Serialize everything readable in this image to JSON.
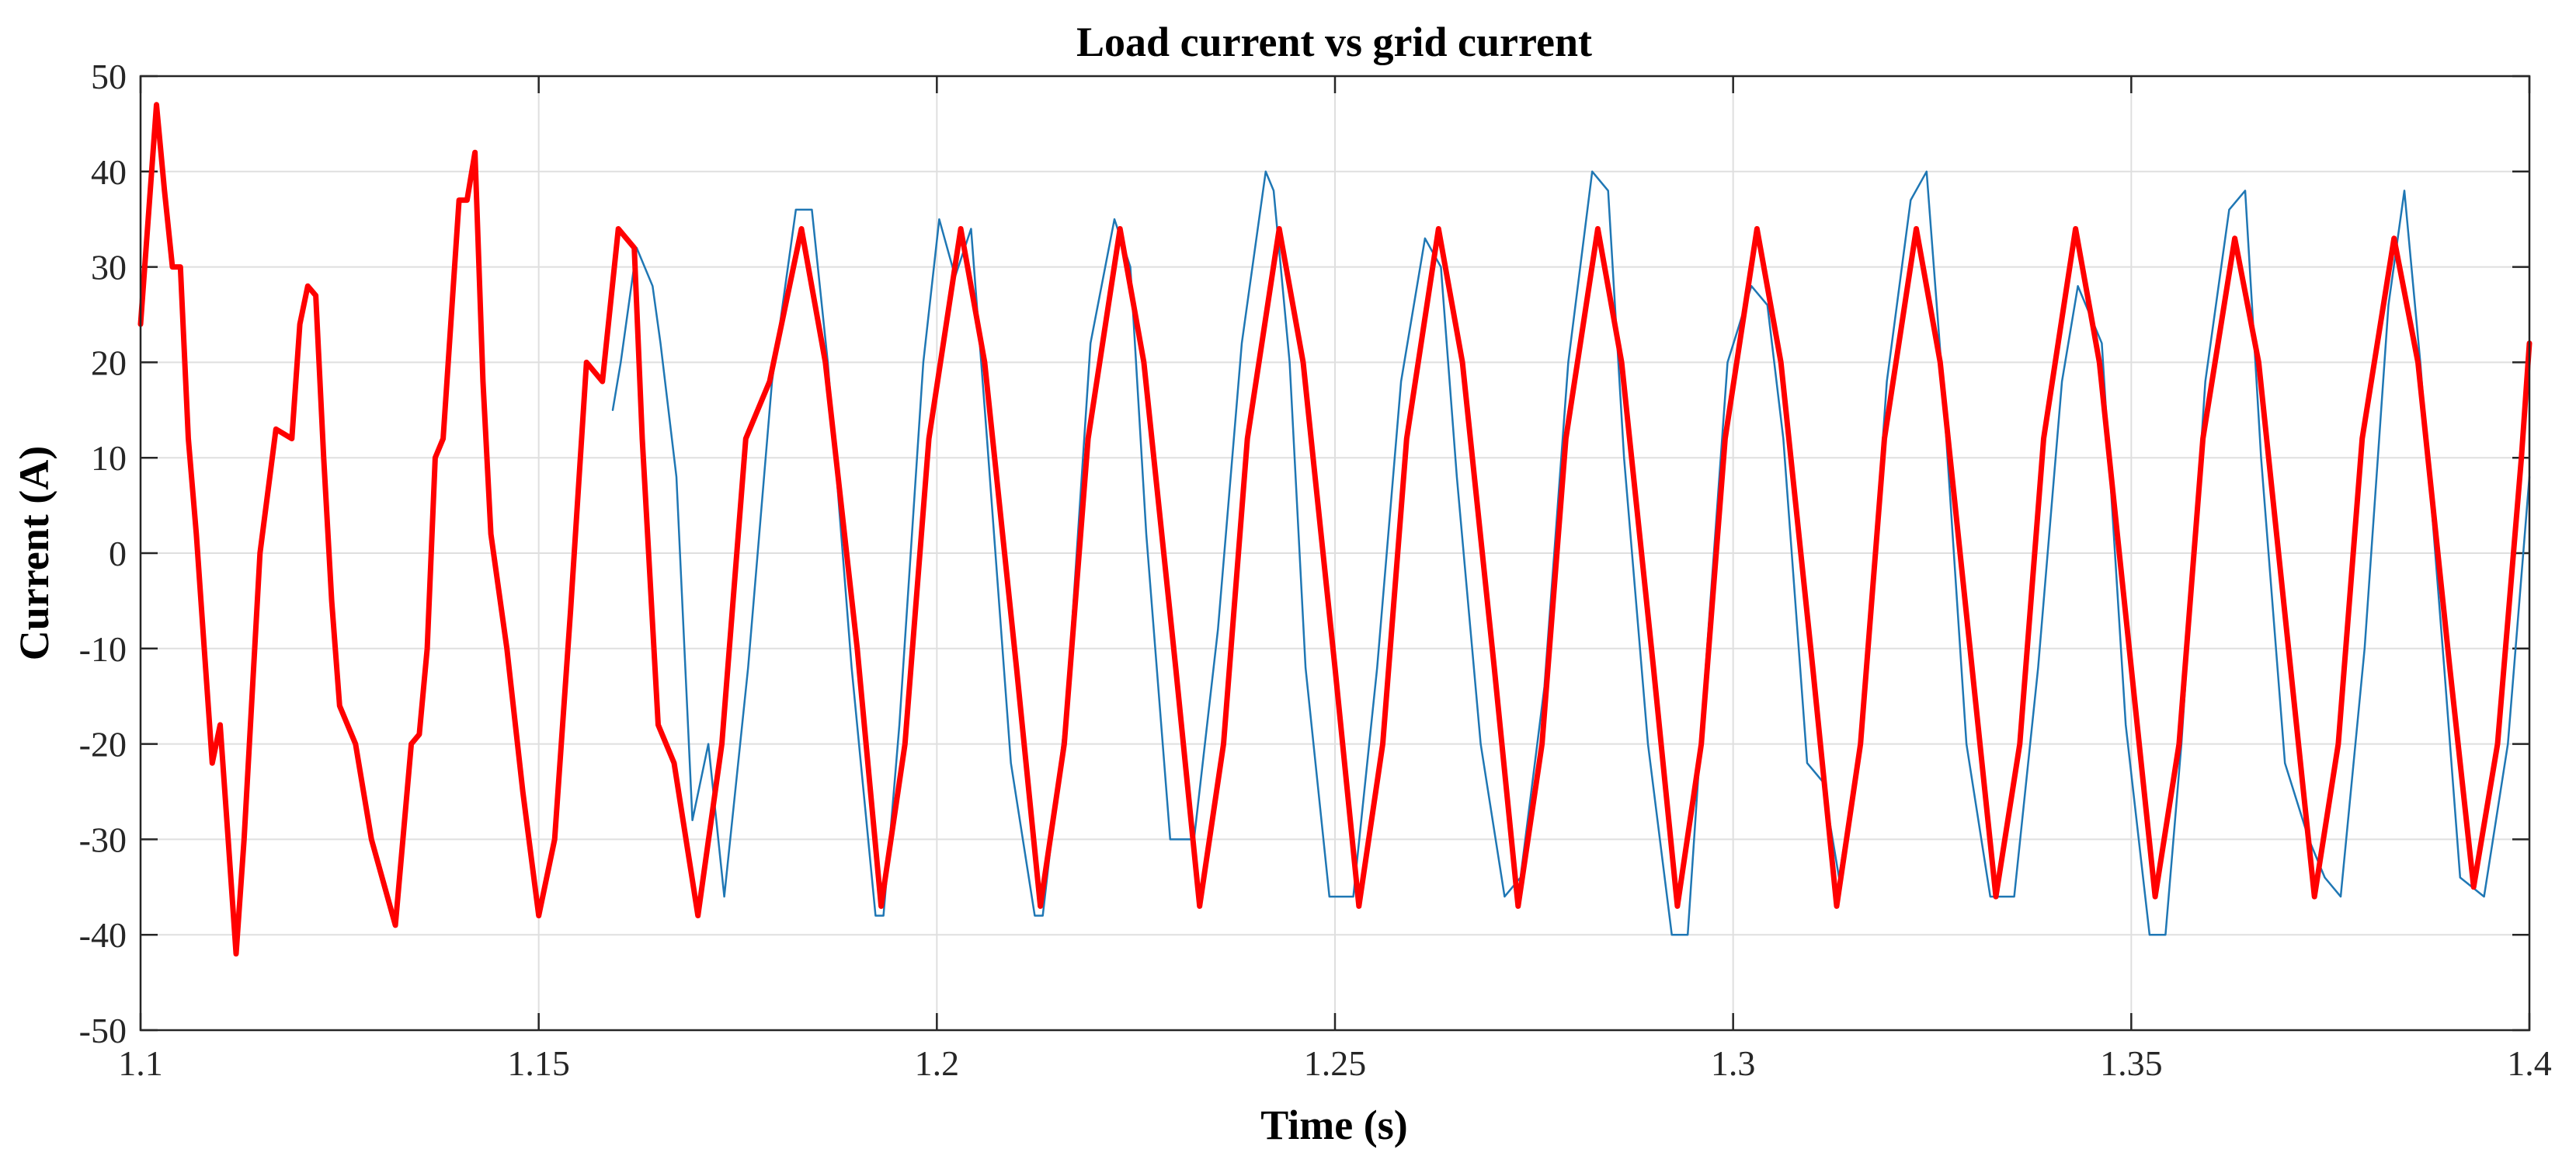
{
  "chart_data": {
    "type": "line",
    "title": "Load current vs grid current",
    "xlabel": "Time (s)",
    "ylabel": "Current (A)",
    "xlim": [
      1.1,
      1.4
    ],
    "ylim": [
      -50,
      50
    ],
    "x_ticks": [
      1.1,
      1.15,
      1.2,
      1.25,
      1.3,
      1.35,
      1.4
    ],
    "x_tick_labels": [
      "1.1",
      "1.15",
      "1.2",
      "1.25",
      "1.3",
      "1.35",
      "1.4"
    ],
    "y_ticks": [
      50,
      40,
      30,
      20,
      10,
      0,
      -10,
      -20,
      -30,
      -40,
      -50
    ],
    "y_tick_labels": [
      "50",
      "40",
      "30",
      "20",
      "10",
      "0",
      "-10",
      "-20",
      "-30",
      "-40",
      "-50"
    ],
    "grid": true,
    "legend": "none",
    "series": [
      {
        "color": "#1f77b4",
        "x": [
          1.1593,
          1.1603,
          1.1623,
          1.1643,
          1.1653,
          1.1673,
          1.1693,
          1.1713,
          1.1733,
          1.1763,
          1.1793,
          1.1823,
          1.1843,
          1.1863,
          1.1893,
          1.1923,
          1.1933,
          1.1953,
          1.1983,
          1.2003,
          1.2023,
          1.2043,
          1.2063,
          1.2093,
          1.2123,
          1.2133,
          1.2163,
          1.2193,
          1.2223,
          1.2243,
          1.2263,
          1.2293,
          1.2323,
          1.2353,
          1.2383,
          1.2413,
          1.2423,
          1.2443,
          1.2463,
          1.2493,
          1.2523,
          1.2553,
          1.2583,
          1.2613,
          1.2633,
          1.2653,
          1.2683,
          1.2713,
          1.2733,
          1.2763,
          1.2793,
          1.2823,
          1.2843,
          1.2863,
          1.2893,
          1.2923,
          1.2943,
          1.2963,
          1.2993,
          1.3023,
          1.3043,
          1.3063,
          1.3093,
          1.3113,
          1.3133,
          1.3163,
          1.3193,
          1.3223,
          1.3243,
          1.3263,
          1.3293,
          1.3323,
          1.3353,
          1.3383,
          1.3413,
          1.3433,
          1.3463,
          1.3493,
          1.3523,
          1.3543,
          1.3563,
          1.3593,
          1.3623,
          1.3643,
          1.3663,
          1.3693,
          1.3723,
          1.3743,
          1.3763,
          1.3793,
          1.3823,
          1.3843,
          1.3863,
          1.3893,
          1.3913,
          1.3943,
          1.3973,
          1.4
        ],
        "y": [
          15,
          20,
          32,
          28,
          22,
          8,
          -28,
          -20,
          -36,
          -12,
          18,
          36,
          36,
          20,
          -12,
          -38,
          -38,
          -18,
          20,
          35,
          29,
          34,
          12,
          -22,
          -38,
          -38,
          -16,
          22,
          35,
          30,
          2,
          -30,
          -30,
          -8,
          22,
          40,
          38,
          20,
          -12,
          -36,
          -36,
          -12,
          18,
          33,
          30,
          8,
          -20,
          -36,
          -34,
          -14,
          20,
          40,
          38,
          10,
          -20,
          -40,
          -40,
          -15,
          20,
          28,
          26,
          12,
          -22,
          -24,
          -34,
          -18,
          18,
          37,
          40,
          18,
          -20,
          -36,
          -36,
          -12,
          18,
          28,
          22,
          -18,
          -40,
          -40,
          -20,
          18,
          36,
          38,
          10,
          -22,
          -30,
          -34,
          -36,
          -10,
          26,
          38,
          20,
          -12,
          -34,
          -36,
          -20,
          8
        ]
      },
      {
        "color": "#ff0000",
        "x": [
          1.1,
          1.102,
          1.103,
          1.104,
          1.105,
          1.106,
          1.107,
          1.108,
          1.109,
          1.11,
          1.111,
          1.112,
          1.113,
          1.115,
          1.117,
          1.119,
          1.12,
          1.121,
          1.122,
          1.123,
          1.124,
          1.125,
          1.127,
          1.129,
          1.132,
          1.134,
          1.135,
          1.136,
          1.137,
          1.138,
          1.14,
          1.141,
          1.142,
          1.143,
          1.144,
          1.146,
          1.148,
          1.15,
          1.152,
          1.154,
          1.156,
          1.158,
          1.16,
          1.162,
          1.163,
          1.165,
          1.167,
          1.17,
          1.173,
          1.176,
          1.179,
          1.183,
          1.186,
          1.19,
          1.193,
          1.196,
          1.199,
          1.203,
          1.206,
          1.21,
          1.213,
          1.216,
          1.219,
          1.223,
          1.226,
          1.23,
          1.233,
          1.236,
          1.239,
          1.243,
          1.246,
          1.25,
          1.253,
          1.256,
          1.259,
          1.263,
          1.266,
          1.27,
          1.273,
          1.276,
          1.279,
          1.283,
          1.286,
          1.29,
          1.293,
          1.296,
          1.299,
          1.303,
          1.306,
          1.31,
          1.313,
          1.316,
          1.319,
          1.323,
          1.326,
          1.33,
          1.333,
          1.336,
          1.339,
          1.343,
          1.346,
          1.35,
          1.353,
          1.356,
          1.359,
          1.363,
          1.366,
          1.37,
          1.373,
          1.376,
          1.379,
          1.383,
          1.386,
          1.39,
          1.393,
          1.396,
          1.399,
          1.4
        ],
        "y": [
          24,
          47,
          38,
          30,
          30,
          12,
          2,
          -10,
          -22,
          -18,
          -30,
          -42,
          -30,
          0,
          13,
          12,
          24,
          28,
          27,
          10,
          -5,
          -16,
          -20,
          -30,
          -39,
          -20,
          -19,
          -10,
          10,
          12,
          37,
          37,
          42,
          18,
          2,
          -10,
          -25,
          -38,
          -30,
          -6,
          20,
          18,
          34,
          32,
          12,
          -18,
          -22,
          -38,
          -20,
          12,
          18,
          34,
          20,
          -10,
          -37,
          -20,
          12,
          34,
          20,
          -12,
          -37,
          -20,
          12,
          34,
          20,
          -12,
          -37,
          -20,
          12,
          34,
          20,
          -12,
          -37,
          -20,
          12,
          34,
          20,
          -12,
          -37,
          -20,
          12,
          34,
          20,
          -12,
          -37,
          -20,
          12,
          34,
          20,
          -12,
          -37,
          -20,
          12,
          34,
          20,
          -12,
          -36,
          -20,
          12,
          34,
          20,
          -12,
          -36,
          -20,
          12,
          33,
          20,
          -12,
          -36,
          -20,
          12,
          33,
          20,
          -12,
          -35,
          -20,
          10,
          22
        ]
      }
    ]
  }
}
